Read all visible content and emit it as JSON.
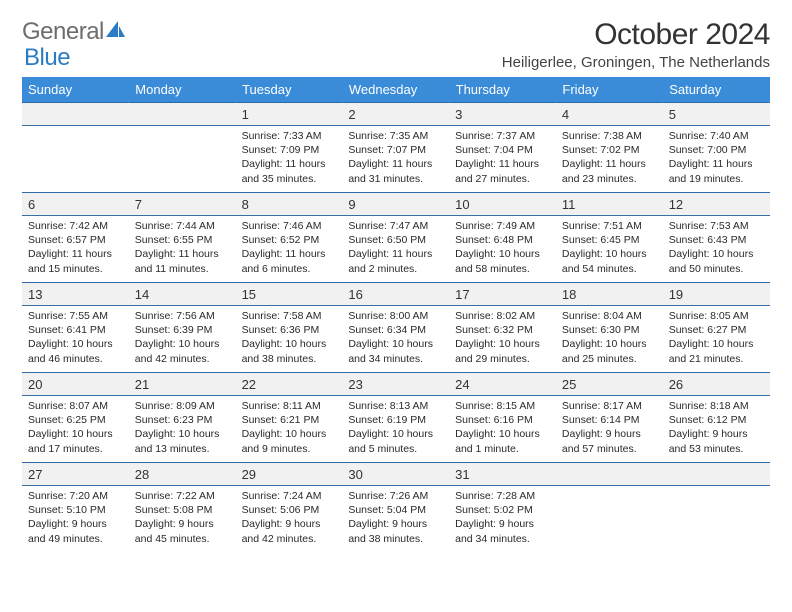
{
  "colors": {
    "header_bg": "#3a8bd8",
    "header_text": "#ffffff",
    "daynum_bg": "#f1f1f1",
    "border": "#2c6aa8",
    "text": "#2a2a2a",
    "logo_gray": "#6d6d6d",
    "logo_blue": "#2b7cc4"
  },
  "logo": {
    "word1": "General",
    "word2": "Blue"
  },
  "title": "October 2024",
  "location": "Heiligerlee, Groningen, The Netherlands",
  "day_headers": [
    "Sunday",
    "Monday",
    "Tuesday",
    "Wednesday",
    "Thursday",
    "Friday",
    "Saturday"
  ],
  "weeks": [
    [
      {
        "n": "",
        "l1": "",
        "l2": "",
        "l3": "",
        "l4": ""
      },
      {
        "n": "",
        "l1": "",
        "l2": "",
        "l3": "",
        "l4": ""
      },
      {
        "n": "1",
        "l1": "Sunrise: 7:33 AM",
        "l2": "Sunset: 7:09 PM",
        "l3": "Daylight: 11 hours",
        "l4": "and 35 minutes."
      },
      {
        "n": "2",
        "l1": "Sunrise: 7:35 AM",
        "l2": "Sunset: 7:07 PM",
        "l3": "Daylight: 11 hours",
        "l4": "and 31 minutes."
      },
      {
        "n": "3",
        "l1": "Sunrise: 7:37 AM",
        "l2": "Sunset: 7:04 PM",
        "l3": "Daylight: 11 hours",
        "l4": "and 27 minutes."
      },
      {
        "n": "4",
        "l1": "Sunrise: 7:38 AM",
        "l2": "Sunset: 7:02 PM",
        "l3": "Daylight: 11 hours",
        "l4": "and 23 minutes."
      },
      {
        "n": "5",
        "l1": "Sunrise: 7:40 AM",
        "l2": "Sunset: 7:00 PM",
        "l3": "Daylight: 11 hours",
        "l4": "and 19 minutes."
      }
    ],
    [
      {
        "n": "6",
        "l1": "Sunrise: 7:42 AM",
        "l2": "Sunset: 6:57 PM",
        "l3": "Daylight: 11 hours",
        "l4": "and 15 minutes."
      },
      {
        "n": "7",
        "l1": "Sunrise: 7:44 AM",
        "l2": "Sunset: 6:55 PM",
        "l3": "Daylight: 11 hours",
        "l4": "and 11 minutes."
      },
      {
        "n": "8",
        "l1": "Sunrise: 7:46 AM",
        "l2": "Sunset: 6:52 PM",
        "l3": "Daylight: 11 hours",
        "l4": "and 6 minutes."
      },
      {
        "n": "9",
        "l1": "Sunrise: 7:47 AM",
        "l2": "Sunset: 6:50 PM",
        "l3": "Daylight: 11 hours",
        "l4": "and 2 minutes."
      },
      {
        "n": "10",
        "l1": "Sunrise: 7:49 AM",
        "l2": "Sunset: 6:48 PM",
        "l3": "Daylight: 10 hours",
        "l4": "and 58 minutes."
      },
      {
        "n": "11",
        "l1": "Sunrise: 7:51 AM",
        "l2": "Sunset: 6:45 PM",
        "l3": "Daylight: 10 hours",
        "l4": "and 54 minutes."
      },
      {
        "n": "12",
        "l1": "Sunrise: 7:53 AM",
        "l2": "Sunset: 6:43 PM",
        "l3": "Daylight: 10 hours",
        "l4": "and 50 minutes."
      }
    ],
    [
      {
        "n": "13",
        "l1": "Sunrise: 7:55 AM",
        "l2": "Sunset: 6:41 PM",
        "l3": "Daylight: 10 hours",
        "l4": "and 46 minutes."
      },
      {
        "n": "14",
        "l1": "Sunrise: 7:56 AM",
        "l2": "Sunset: 6:39 PM",
        "l3": "Daylight: 10 hours",
        "l4": "and 42 minutes."
      },
      {
        "n": "15",
        "l1": "Sunrise: 7:58 AM",
        "l2": "Sunset: 6:36 PM",
        "l3": "Daylight: 10 hours",
        "l4": "and 38 minutes."
      },
      {
        "n": "16",
        "l1": "Sunrise: 8:00 AM",
        "l2": "Sunset: 6:34 PM",
        "l3": "Daylight: 10 hours",
        "l4": "and 34 minutes."
      },
      {
        "n": "17",
        "l1": "Sunrise: 8:02 AM",
        "l2": "Sunset: 6:32 PM",
        "l3": "Daylight: 10 hours",
        "l4": "and 29 minutes."
      },
      {
        "n": "18",
        "l1": "Sunrise: 8:04 AM",
        "l2": "Sunset: 6:30 PM",
        "l3": "Daylight: 10 hours",
        "l4": "and 25 minutes."
      },
      {
        "n": "19",
        "l1": "Sunrise: 8:05 AM",
        "l2": "Sunset: 6:27 PM",
        "l3": "Daylight: 10 hours",
        "l4": "and 21 minutes."
      }
    ],
    [
      {
        "n": "20",
        "l1": "Sunrise: 8:07 AM",
        "l2": "Sunset: 6:25 PM",
        "l3": "Daylight: 10 hours",
        "l4": "and 17 minutes."
      },
      {
        "n": "21",
        "l1": "Sunrise: 8:09 AM",
        "l2": "Sunset: 6:23 PM",
        "l3": "Daylight: 10 hours",
        "l4": "and 13 minutes."
      },
      {
        "n": "22",
        "l1": "Sunrise: 8:11 AM",
        "l2": "Sunset: 6:21 PM",
        "l3": "Daylight: 10 hours",
        "l4": "and 9 minutes."
      },
      {
        "n": "23",
        "l1": "Sunrise: 8:13 AM",
        "l2": "Sunset: 6:19 PM",
        "l3": "Daylight: 10 hours",
        "l4": "and 5 minutes."
      },
      {
        "n": "24",
        "l1": "Sunrise: 8:15 AM",
        "l2": "Sunset: 6:16 PM",
        "l3": "Daylight: 10 hours",
        "l4": "and 1 minute."
      },
      {
        "n": "25",
        "l1": "Sunrise: 8:17 AM",
        "l2": "Sunset: 6:14 PM",
        "l3": "Daylight: 9 hours",
        "l4": "and 57 minutes."
      },
      {
        "n": "26",
        "l1": "Sunrise: 8:18 AM",
        "l2": "Sunset: 6:12 PM",
        "l3": "Daylight: 9 hours",
        "l4": "and 53 minutes."
      }
    ],
    [
      {
        "n": "27",
        "l1": "Sunrise: 7:20 AM",
        "l2": "Sunset: 5:10 PM",
        "l3": "Daylight: 9 hours",
        "l4": "and 49 minutes."
      },
      {
        "n": "28",
        "l1": "Sunrise: 7:22 AM",
        "l2": "Sunset: 5:08 PM",
        "l3": "Daylight: 9 hours",
        "l4": "and 45 minutes."
      },
      {
        "n": "29",
        "l1": "Sunrise: 7:24 AM",
        "l2": "Sunset: 5:06 PM",
        "l3": "Daylight: 9 hours",
        "l4": "and 42 minutes."
      },
      {
        "n": "30",
        "l1": "Sunrise: 7:26 AM",
        "l2": "Sunset: 5:04 PM",
        "l3": "Daylight: 9 hours",
        "l4": "and 38 minutes."
      },
      {
        "n": "31",
        "l1": "Sunrise: 7:28 AM",
        "l2": "Sunset: 5:02 PM",
        "l3": "Daylight: 9 hours",
        "l4": "and 34 minutes."
      },
      {
        "n": "",
        "l1": "",
        "l2": "",
        "l3": "",
        "l4": ""
      },
      {
        "n": "",
        "l1": "",
        "l2": "",
        "l3": "",
        "l4": ""
      }
    ]
  ]
}
